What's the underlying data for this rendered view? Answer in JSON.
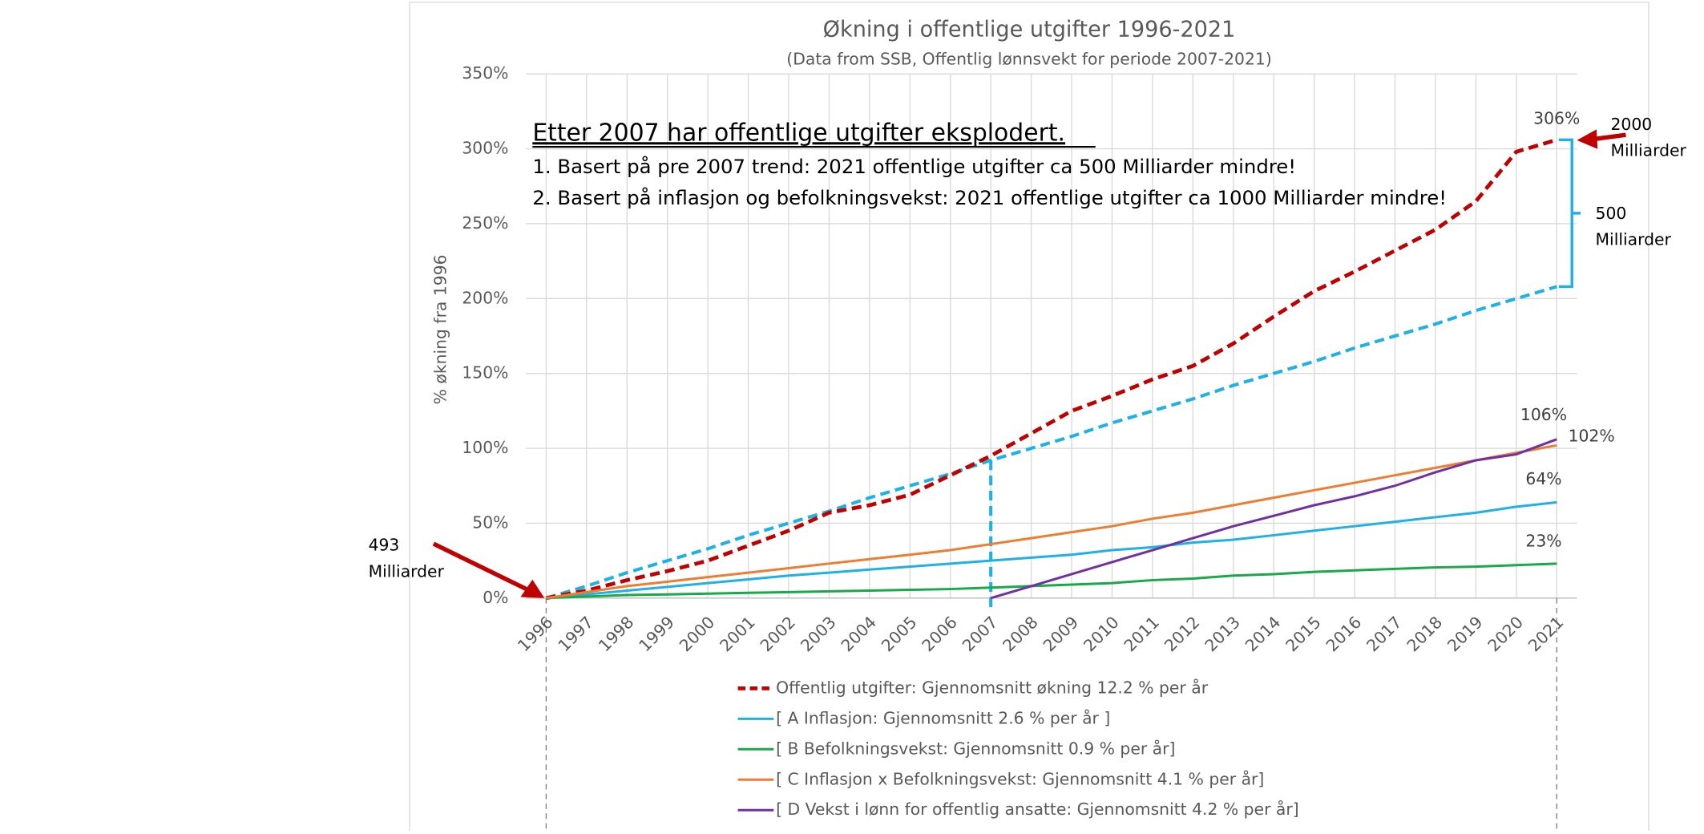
{
  "chart_data": {
    "type": "line",
    "title": "Økning i offentlige utgifter 1996-2021",
    "subtitle": "(Data from SSB, Offentlig lønnsvekt for periode 2007-2021)",
    "y_label": "% økning fra 1996",
    "categories": [
      "1996",
      "1997",
      "1998",
      "1999",
      "2000",
      "2001",
      "2002",
      "2003",
      "2004",
      "2005",
      "2006",
      "2007",
      "2008",
      "2009",
      "2010",
      "2011",
      "2012",
      "2013",
      "2014",
      "2015",
      "2016",
      "2017",
      "2018",
      "2019",
      "2020",
      "2021"
    ],
    "ylim": [
      0,
      350
    ],
    "yticks": [
      {
        "value": 0,
        "label": "0%"
      },
      {
        "value": 50,
        "label": "50%"
      },
      {
        "value": 100,
        "label": "100%"
      },
      {
        "value": 150,
        "label": "150%"
      },
      {
        "value": 200,
        "label": "200%"
      },
      {
        "value": 250,
        "label": "250%"
      },
      {
        "value": 300,
        "label": "300%"
      },
      {
        "value": 350,
        "label": "350%"
      }
    ],
    "grid": true,
    "series": [
      {
        "name": "Offentlig utgifter: Gjennomsnitt økning 12.2 % per år",
        "color": "#c00000",
        "dashed": true,
        "values": [
          0,
          5,
          12,
          18,
          25,
          35,
          45,
          57,
          62,
          69,
          82,
          95,
          110,
          125,
          135,
          146,
          155,
          170,
          188,
          205,
          218,
          232,
          246,
          265,
          298,
          306
        ],
        "value_labels": [
          null,
          null,
          null,
          null,
          null,
          null,
          null,
          null,
          null,
          null,
          null,
          null,
          null,
          null,
          null,
          null,
          null,
          null,
          null,
          null,
          null,
          null,
          null,
          null,
          null,
          "306%"
        ]
      },
      {
        "name": "[ A Inflasjon: Gjennomsnitt 2.6 % per år ]",
        "color": "#1fb0e6",
        "values": [
          0,
          2.5,
          5,
          7.5,
          10,
          12.5,
          15,
          17,
          19,
          21,
          23,
          25,
          27,
          29,
          32,
          34,
          37,
          39,
          42,
          45,
          48,
          51,
          54,
          57,
          61,
          64
        ],
        "value_labels": [
          null,
          null,
          null,
          null,
          null,
          null,
          null,
          null,
          null,
          null,
          null,
          null,
          null,
          null,
          null,
          null,
          null,
          null,
          null,
          null,
          null,
          null,
          null,
          null,
          null,
          "64%"
        ]
      },
      {
        "name": "[ B Befolkningsvekst: Gjennomsnitt 0.9 % per år]",
        "color": "#1aa84a",
        "values": [
          0,
          1,
          2,
          2.5,
          3,
          3.5,
          4,
          4.5,
          5,
          5.5,
          6,
          7,
          8,
          9,
          10,
          12,
          13,
          15,
          16,
          17.5,
          18.5,
          19.5,
          20.5,
          21,
          22,
          23
        ],
        "value_labels": [
          null,
          null,
          null,
          null,
          null,
          null,
          null,
          null,
          null,
          null,
          null,
          null,
          null,
          null,
          null,
          null,
          null,
          null,
          null,
          null,
          null,
          null,
          null,
          null,
          null,
          "23%"
        ]
      },
      {
        "name": "[ C Inflasjon x Befolkningsvekst: Gjennomsnitt 4.1 % per år]",
        "color": "#ed7d31",
        "values": [
          0,
          4,
          8,
          11,
          14,
          17,
          20,
          23,
          26,
          29,
          32,
          36,
          40,
          44,
          48,
          53,
          57,
          62,
          67,
          72,
          77,
          82,
          87,
          92,
          97,
          102
        ],
        "value_labels": [
          null,
          null,
          null,
          null,
          null,
          null,
          null,
          null,
          null,
          null,
          null,
          null,
          null,
          null,
          null,
          null,
          null,
          null,
          null,
          null,
          null,
          null,
          null,
          null,
          null,
          "102%"
        ]
      },
      {
        "name": "[ D Vekst i lønn for offentlig ansatte: Gjennomsnitt 4.2 % per år]",
        "color": "#7030a0",
        "values": [
          null,
          null,
          null,
          null,
          null,
          null,
          null,
          null,
          null,
          null,
          null,
          0,
          8,
          16,
          24,
          32,
          40,
          48,
          55,
          62,
          68,
          75,
          84,
          92,
          96,
          106
        ],
        "value_labels": [
          null,
          null,
          null,
          null,
          null,
          null,
          null,
          null,
          null,
          null,
          null,
          null,
          null,
          null,
          null,
          null,
          null,
          null,
          null,
          null,
          null,
          null,
          null,
          null,
          null,
          "106%"
        ]
      }
    ],
    "trend": {
      "color": "#1fb0e6",
      "values": [
        0,
        8,
        17,
        25,
        33,
        42,
        50,
        58,
        67,
        75,
        83,
        92,
        100,
        108,
        117,
        125,
        133,
        142,
        150,
        158,
        167,
        175,
        183,
        192,
        200,
        208
      ]
    },
    "annotations": {
      "heading": "Etter 2007 har offentlige utgifter eksplodert.",
      "line1": "1. Basert på pre 2007 trend: 2021 offentlige utgifter ca 500 Milliarder mindre!",
      "line2": "2. Basert på inflasjon og befolkningsvekst: 2021 offentlige utgifter ca 1000 Milliarder mindre!",
      "start": [
        "493",
        "Milliarder"
      ],
      "end": [
        "2000",
        "Milliarder"
      ],
      "gap": [
        "500",
        "Milliarder"
      ]
    }
  }
}
